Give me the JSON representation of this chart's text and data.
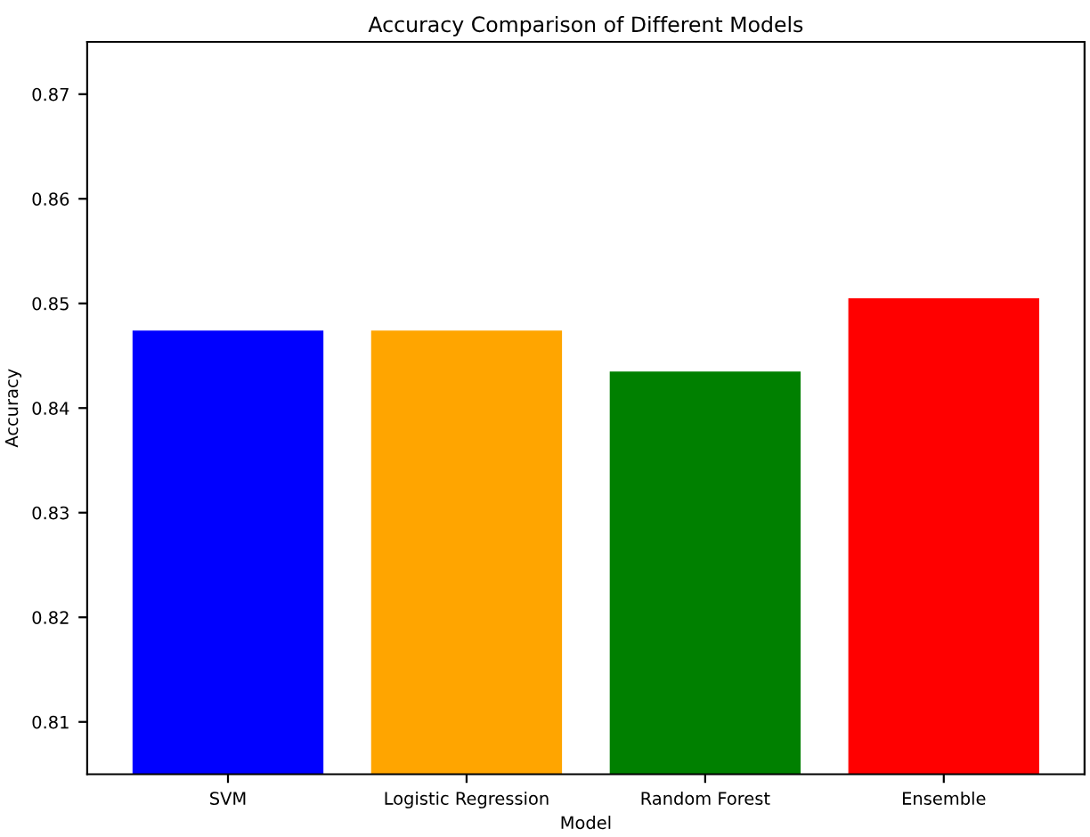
{
  "chart_data": {
    "type": "bar",
    "title": "Accuracy Comparison of Different Models",
    "xlabel": "Model",
    "ylabel": "Accuracy",
    "categories": [
      "SVM",
      "Logistic Regression",
      "Random Forest",
      "Ensemble"
    ],
    "values": [
      0.8474,
      0.8474,
      0.8435,
      0.8505
    ],
    "colors": [
      "#0000ff",
      "#ffa500",
      "#008000",
      "#ff0000"
    ],
    "ylim": [
      0.805,
      0.875
    ],
    "yticks": [
      0.81,
      0.82,
      0.83,
      0.84,
      0.85,
      0.86,
      0.87
    ],
    "grid": false
  }
}
